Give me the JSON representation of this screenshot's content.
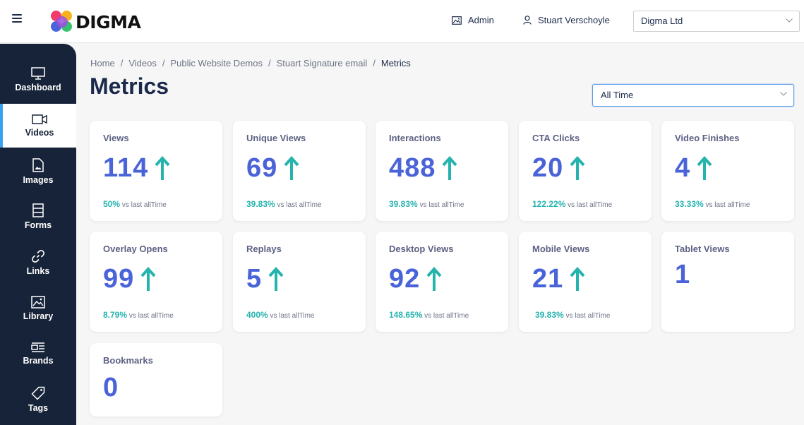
{
  "brand": {
    "name": "DIGMA"
  },
  "header": {
    "admin_label": "Admin",
    "user_name": "Stuart Verschoyle",
    "org_select": "Digma Ltd"
  },
  "sidebar": {
    "items": [
      {
        "label": "Dashboard",
        "icon": "monitor-icon"
      },
      {
        "label": "Videos",
        "icon": "video-camera-icon",
        "active": true
      },
      {
        "label": "Images",
        "icon": "image-file-icon"
      },
      {
        "label": "Forms",
        "icon": "form-icon"
      },
      {
        "label": "Links",
        "icon": "link-icon"
      },
      {
        "label": "Library",
        "icon": "library-icon"
      },
      {
        "label": "Brands",
        "icon": "brands-icon"
      },
      {
        "label": "Tags",
        "icon": "tag-icon"
      }
    ]
  },
  "breadcrumb": [
    "Home",
    "Videos",
    "Public Website Demos",
    "Stuart Signature email",
    "Metrics"
  ],
  "page": {
    "title": "Metrics",
    "range_select": "All Time"
  },
  "colors": {
    "accent": "#4a63d8",
    "up_arrow": "#25b3ae",
    "sidebar": "#172338"
  },
  "metrics": [
    {
      "title": "Views",
      "value": "114",
      "pct": "50%",
      "suffix": "vs last allTime",
      "trend": "up"
    },
    {
      "title": "Unique Views",
      "value": "69",
      "pct": "39.83%",
      "suffix": "vs last allTime",
      "trend": "up"
    },
    {
      "title": "Interactions",
      "value": "488",
      "pct": "39.83%",
      "suffix": "vs last allTime",
      "trend": "up"
    },
    {
      "title": "CTA Clicks",
      "value": "20",
      "pct": "122.22%",
      "suffix": "vs last allTime",
      "trend": "up"
    },
    {
      "title": "Video Finishes",
      "value": "4",
      "pct": "33.33%",
      "suffix": "vs last allTime",
      "trend": "up"
    },
    {
      "title": "Overlay Opens",
      "value": "99",
      "pct": "8.79%",
      "suffix": "vs last allTime",
      "trend": "up"
    },
    {
      "title": "Replays",
      "value": "5",
      "pct": "400%",
      "suffix": "vs last allTime",
      "trend": "up"
    },
    {
      "title": "Desktop Views",
      "value": "92",
      "pct": "148.65%",
      "suffix": "vs last allTime",
      "trend": "up"
    },
    {
      "title": "Mobile Views",
      "value": "21",
      "pct": "39.83%",
      "suffix": "vs last allTime",
      "trend": "up"
    },
    {
      "title": "Tablet Views",
      "value": "1"
    },
    {
      "title": "Bookmarks",
      "value": "0"
    }
  ]
}
